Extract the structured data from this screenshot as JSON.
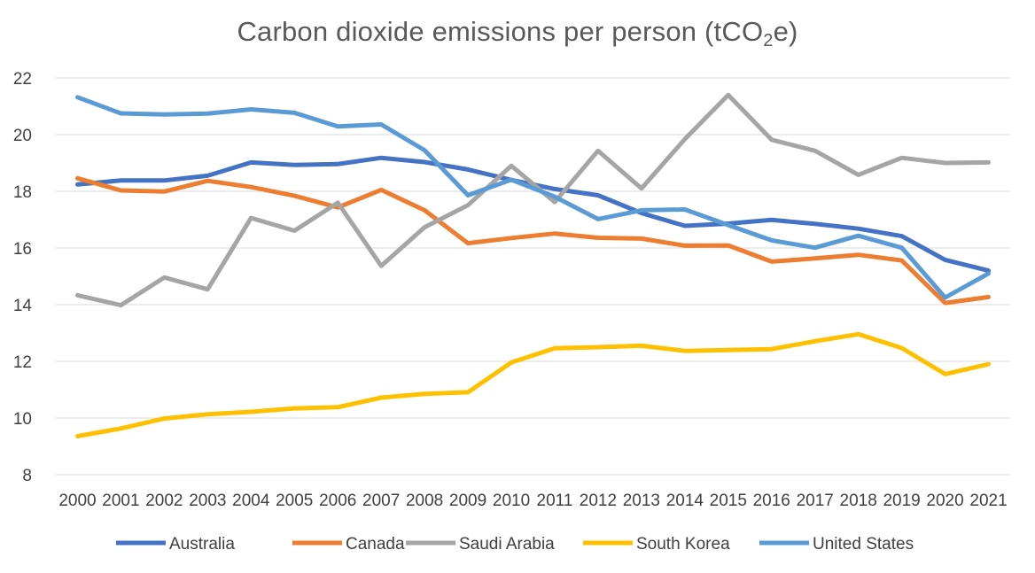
{
  "chart_data": {
    "type": "line",
    "title_main": "Carbon dioxide emissions per person (tCO",
    "title_sub": "2",
    "title_tail": "e)",
    "x": [
      "2000",
      "2001",
      "2002",
      "2003",
      "2004",
      "2005",
      "2006",
      "2007",
      "2008",
      "2009",
      "2010",
      "2011",
      "2012",
      "2013",
      "2014",
      "2015",
      "2016",
      "2017",
      "2018",
      "2019",
      "2020",
      "2021"
    ],
    "yticks": [
      "8",
      "10",
      "12",
      "14",
      "16",
      "18",
      "20",
      "22"
    ],
    "ylim": [
      8,
      22
    ],
    "grid": true,
    "legend_position": "bottom",
    "series": [
      {
        "name": "Australia",
        "color": "#4472c4",
        "values": [
          18.24,
          18.38,
          18.38,
          18.55,
          19.02,
          18.93,
          18.96,
          19.18,
          19.03,
          18.77,
          18.4,
          18.08,
          17.86,
          17.23,
          16.78,
          16.86,
          16.99,
          16.85,
          16.68,
          16.42,
          15.58,
          15.2
        ]
      },
      {
        "name": "Canada",
        "color": "#ed7d31",
        "values": [
          18.46,
          18.03,
          17.99,
          18.37,
          18.15,
          17.84,
          17.43,
          18.05,
          17.33,
          16.17,
          16.35,
          16.51,
          16.36,
          16.33,
          16.08,
          16.09,
          15.52,
          15.63,
          15.76,
          15.56,
          14.06,
          14.27
        ]
      },
      {
        "name": "Saudi Arabia",
        "color": "#a5a5a5",
        "values": [
          14.33,
          13.98,
          14.96,
          14.54,
          17.06,
          16.61,
          17.6,
          15.37,
          16.73,
          17.51,
          18.9,
          17.62,
          19.43,
          18.1,
          19.84,
          21.4,
          19.82,
          19.43,
          18.58,
          19.18,
          19.0,
          19.02
        ]
      },
      {
        "name": "South Korea",
        "color": "#ffc000",
        "values": [
          9.36,
          9.63,
          9.98,
          10.13,
          10.22,
          10.34,
          10.38,
          10.72,
          10.85,
          10.91,
          11.96,
          12.46,
          12.5,
          12.55,
          12.37,
          12.4,
          12.43,
          12.71,
          12.96,
          12.47,
          11.55,
          11.9
        ]
      },
      {
        "name": "United States",
        "color": "#5b9bd5",
        "values": [
          21.32,
          20.75,
          20.71,
          20.74,
          20.89,
          20.77,
          20.29,
          20.36,
          19.45,
          17.86,
          18.41,
          17.81,
          17.02,
          17.33,
          17.36,
          16.81,
          16.27,
          16.01,
          16.43,
          16.01,
          14.25,
          15.1
        ]
      }
    ]
  }
}
